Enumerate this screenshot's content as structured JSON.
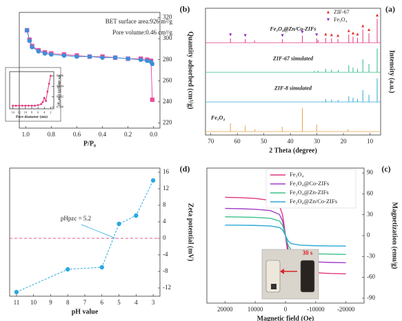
{
  "chart_data": [
    {
      "type": "line",
      "panel_label": "(b)",
      "xlabel": "P/P₀",
      "ylabel": "Quantity adsorbed (cm³/g)",
      "xlim": [
        1.05,
        -0.05
      ],
      "ylim": [
        215,
        325
      ],
      "xticks": [
        {
          "value": 1.0,
          "label": "1.0"
        },
        {
          "value": 0.8,
          "label": "0.8"
        },
        {
          "value": 0.6,
          "label": "0.6"
        },
        {
          "value": 0.4,
          "label": "0.4"
        },
        {
          "value": 0.2,
          "label": "0.2"
        },
        {
          "value": 0.0,
          "label": "0.0"
        }
      ],
      "yticks": [
        220,
        240,
        260,
        280,
        300,
        320
      ],
      "annotations": [
        "BET surface area:926 m²/g",
        "Pore volume:0.46 cm³/g"
      ],
      "series": [
        {
          "color": "#ea4f9c",
          "marker": "square",
          "x": [
            0.99,
            0.97,
            0.95,
            0.9,
            0.85,
            0.8,
            0.7,
            0.6,
            0.5,
            0.4,
            0.3,
            0.2,
            0.1,
            0.05,
            0.02,
            0.01
          ],
          "values": [
            308,
            299,
            293,
            289,
            287,
            286,
            285,
            284,
            283,
            283,
            282,
            281,
            281,
            280,
            279,
            242
          ]
        },
        {
          "color": "#3b8fd9",
          "marker": "circle",
          "x": [
            0.99,
            0.97,
            0.95,
            0.9,
            0.85,
            0.8,
            0.7,
            0.6,
            0.5,
            0.4,
            0.3,
            0.2,
            0.1,
            0.05,
            0.02,
            0.01
          ],
          "values": [
            308,
            298,
            292,
            288,
            286,
            285,
            284,
            283,
            283,
            282,
            282,
            281,
            280,
            279,
            278,
            276
          ]
        }
      ]
    },
    {
      "type": "line",
      "xlabel": "Pore diameter (nm)",
      "ylabel": "dV/dlog(D) (cm³/g)",
      "xlim": [
        15,
        1
      ],
      "ylim": [
        -0.0003,
        0.0068
      ],
      "xticks": [
        14,
        12,
        10,
        8,
        6,
        4,
        2
      ],
      "yticks": [
        {
          "value": 0,
          "label": "0.000"
        },
        {
          "value": 0.002,
          "label": "0.002"
        },
        {
          "value": 0.004,
          "label": "0.004"
        },
        {
          "value": 0.006,
          "label": "0.006"
        }
      ],
      "series": [
        {
          "color": "#e0357f",
          "marker": "circle",
          "x": [
            14,
            13,
            12,
            11,
            10,
            9,
            8,
            7,
            6,
            5,
            4.5,
            4,
            3.5,
            3,
            2.5,
            2
          ],
          "values": [
            0.0003,
            0.0003,
            0.0003,
            0.0003,
            0.0003,
            0.0003,
            0.0003,
            0.0003,
            0.0004,
            0.0006,
            0.001,
            0.0018,
            0.0012,
            0.003,
            0.0045,
            0.006
          ]
        }
      ]
    },
    {
      "type": "line",
      "panel_label": "(a)",
      "xlabel": "2 Theta (degree)",
      "ylabel": "Intensity (a.u.)",
      "xlim": [
        72,
        6
      ],
      "xticks": [
        10,
        20,
        30,
        40,
        50,
        60,
        70
      ],
      "markers": [
        {
          "name": "ZIF-67",
          "symbol": "▲",
          "color": "#e8332e",
          "x": [
            7.3,
            10.4,
            12.7,
            14.7,
            16.4,
            18,
            22.1,
            24.5,
            26.7
          ]
        },
        {
          "name": "Fe₃O₄",
          "symbol": "▼",
          "color": "#8b2fc9",
          "x": [
            30.1,
            35.5,
            43,
            57,
            62.6
          ]
        }
      ],
      "series": [
        {
          "name": "Fe₃O₄@Zn/Co-ZIFs",
          "color": "#e0357f",
          "style": "peaks",
          "x": [
            7.3,
            10.4,
            12.7,
            14.7,
            16.4,
            18,
            22.1,
            24.5,
            26.7,
            29.6,
            30.1,
            35.5,
            43,
            53.5,
            57,
            62.6
          ],
          "values": [
            100,
            40,
            55,
            20,
            25,
            35,
            15,
            18,
            20,
            12,
            18,
            30,
            15,
            10,
            15,
            18
          ]
        },
        {
          "name": "ZIF-67 simulated",
          "color": "#2fb88a",
          "style": "peaks",
          "x": [
            7.3,
            10.4,
            12.7,
            14.7,
            16.4,
            18,
            22,
            24.5,
            26.7,
            29.6,
            31
          ],
          "values": [
            100,
            35,
            55,
            15,
            20,
            30,
            10,
            12,
            15,
            8,
            6
          ]
        },
        {
          "name": "ZIF-8 simulated",
          "color": "#2ba8d6",
          "style": "peaks",
          "x": [
            7.3,
            10.4,
            12.7,
            14.7,
            16.4,
            18,
            22,
            24.5,
            26.7
          ],
          "values": [
            100,
            30,
            50,
            12,
            18,
            25,
            8,
            10,
            12
          ]
        },
        {
          "name": "Fe₃O₄",
          "color": "#e8a04a",
          "style": "peaks",
          "x": [
            18.3,
            30.1,
            35.5,
            43.1,
            53.4,
            57,
            62.6
          ],
          "values": [
            10,
            30,
            100,
            20,
            10,
            25,
            35
          ]
        }
      ]
    },
    {
      "type": "line",
      "panel_label": "(d)",
      "xlabel": "pH value",
      "ylabel": "Zeta potential (mV)",
      "xlim": [
        11.4,
        2.6
      ],
      "ylim": [
        -14,
        17
      ],
      "xticks": [
        3,
        4,
        5,
        6,
        7,
        8,
        9,
        10,
        11
      ],
      "yticks": [
        -12,
        -8,
        -4,
        0,
        4,
        8,
        12,
        16
      ],
      "reference_line": 0,
      "annotations": [
        "pHpzc = 5.2"
      ],
      "series": [
        {
          "color": "#2ba8e0",
          "marker": "circle",
          "dash": true,
          "x": [
            3,
            4,
            5,
            6,
            8,
            11
          ],
          "values": [
            14,
            5.5,
            3.5,
            -7,
            -7.5,
            -13
          ]
        }
      ]
    },
    {
      "type": "line",
      "panel_label": "(c)",
      "xlabel": "Magnetic field (Oe)",
      "ylabel": "Magnetization (emu/g)",
      "xlim": [
        26000,
        -26000
      ],
      "ylim": [
        -97,
        97
      ],
      "xticks": [
        20000,
        10000,
        0,
        -10000,
        -20000
      ],
      "yticks": [
        -90,
        -60,
        -30,
        0,
        30,
        60,
        90
      ],
      "annotations": [
        "30 s"
      ],
      "series": [
        {
          "name": "Fe₃O₄",
          "color": "#e0357f",
          "x": [
            -20000,
            -15000,
            -10000,
            -5000,
            -2000,
            -1000,
            -500,
            0,
            500,
            1000,
            2000,
            5000,
            10000,
            15000,
            20000
          ],
          "values": [
            -55,
            -54.5,
            -53.4,
            -50.6,
            -42.9,
            -30.3,
            -16.5,
            0,
            16.5,
            30.3,
            42.9,
            50.6,
            53.4,
            54.5,
            55
          ]
        },
        {
          "name": "Fe₃O₄@Co-ZIFs",
          "color": "#a23fc8",
          "x": [
            -20000,
            -15000,
            -10000,
            -5000,
            -2000,
            -1000,
            -500,
            0,
            500,
            1000,
            2000,
            5000,
            10000,
            15000,
            20000
          ],
          "values": [
            -39,
            -38.6,
            -37.8,
            -35.9,
            -30.4,
            -21.5,
            -11.7,
            0,
            11.7,
            21.5,
            30.4,
            35.9,
            37.8,
            38.6,
            39
          ]
        },
        {
          "name": "Fe₃O₄@Zn-ZIFs",
          "color": "#3bc08a",
          "x": [
            -20000,
            -15000,
            -10000,
            -5000,
            -2000,
            -1000,
            -500,
            0,
            500,
            1000,
            2000,
            5000,
            10000,
            15000,
            20000
          ],
          "values": [
            -27,
            -26.7,
            -26.2,
            -24.8,
            -21.1,
            -14.9,
            -8.1,
            0,
            8.1,
            14.9,
            21.1,
            24.8,
            26.2,
            26.7,
            27
          ]
        },
        {
          "name": "Fe₃O₄@Zn/Co-ZIFs",
          "color": "#2ba8d6",
          "x": [
            -20000,
            -15000,
            -10000,
            -5000,
            -2000,
            -1000,
            -500,
            0,
            500,
            1000,
            2000,
            5000,
            10000,
            15000,
            20000
          ],
          "values": [
            -15,
            -14.9,
            -14.6,
            -13.8,
            -11.7,
            -8.3,
            -4.5,
            0,
            4.5,
            8.3,
            11.7,
            13.8,
            14.6,
            14.9,
            15
          ]
        }
      ]
    }
  ]
}
